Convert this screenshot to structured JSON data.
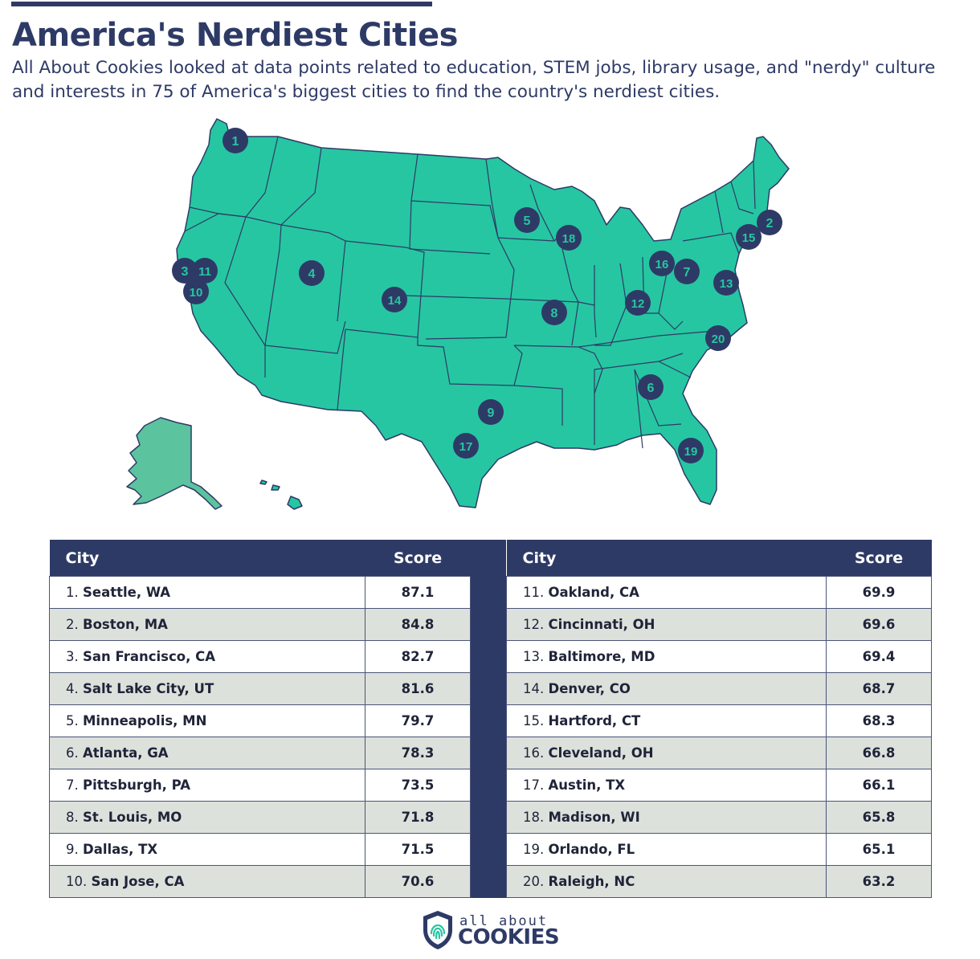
{
  "header": {
    "title": "America's Nerdiest Cities",
    "subtitle": "All About Cookies looked at data points related to education, STEM jobs, library usage, and \"nerdy\" culture and interests in 75 of America's biggest cities to find the country's nerdiest cities."
  },
  "colors": {
    "navy": "#2e3a66",
    "map_fill": "#26c6a2",
    "alaska_fill": "#5cc39f",
    "row_alt": "#dde1dc"
  },
  "map": {
    "markers": [
      "1",
      "2",
      "3",
      "4",
      "5",
      "6",
      "7",
      "8",
      "9",
      "10",
      "11",
      "12",
      "13",
      "14",
      "15",
      "16",
      "17",
      "18",
      "19",
      "20"
    ]
  },
  "table": {
    "headers": {
      "city": "City",
      "score": "Score"
    },
    "rows": [
      {
        "rank": "1.",
        "city": "Seattle, WA",
        "score": "87.1"
      },
      {
        "rank": "2.",
        "city": "Boston, MA",
        "score": "84.8"
      },
      {
        "rank": "3.",
        "city": "San Francisco, CA",
        "score": "82.7"
      },
      {
        "rank": "4.",
        "city": "Salt Lake City, UT",
        "score": "81.6"
      },
      {
        "rank": "5.",
        "city": "Minneapolis, MN",
        "score": "79.7"
      },
      {
        "rank": "6.",
        "city": "Atlanta, GA",
        "score": "78.3"
      },
      {
        "rank": "7.",
        "city": "Pittsburgh, PA",
        "score": "73.5"
      },
      {
        "rank": "8.",
        "city": "St. Louis, MO",
        "score": "71.8"
      },
      {
        "rank": "9.",
        "city": "Dallas, TX",
        "score": "71.5"
      },
      {
        "rank": "10.",
        "city": "San Jose, CA",
        "score": "70.6"
      },
      {
        "rank": "11.",
        "city": "Oakland, CA",
        "score": "69.9"
      },
      {
        "rank": "12.",
        "city": "Cincinnati, OH",
        "score": "69.6"
      },
      {
        "rank": "13.",
        "city": "Baltimore, MD",
        "score": "69.4"
      },
      {
        "rank": "14.",
        "city": "Denver, CO",
        "score": "68.7"
      },
      {
        "rank": "15.",
        "city": "Hartford, CT",
        "score": "68.3"
      },
      {
        "rank": "16.",
        "city": "Cleveland, OH",
        "score": "66.8"
      },
      {
        "rank": "17.",
        "city": "Austin, TX",
        "score": "66.1"
      },
      {
        "rank": "18.",
        "city": "Madison, WI",
        "score": "65.8"
      },
      {
        "rank": "19.",
        "city": "Orlando, FL",
        "score": "65.1"
      },
      {
        "rank": "20.",
        "city": "Raleigh, NC",
        "score": "63.2"
      }
    ]
  },
  "logo": {
    "line1": "all about",
    "line2": "COOKIES"
  }
}
